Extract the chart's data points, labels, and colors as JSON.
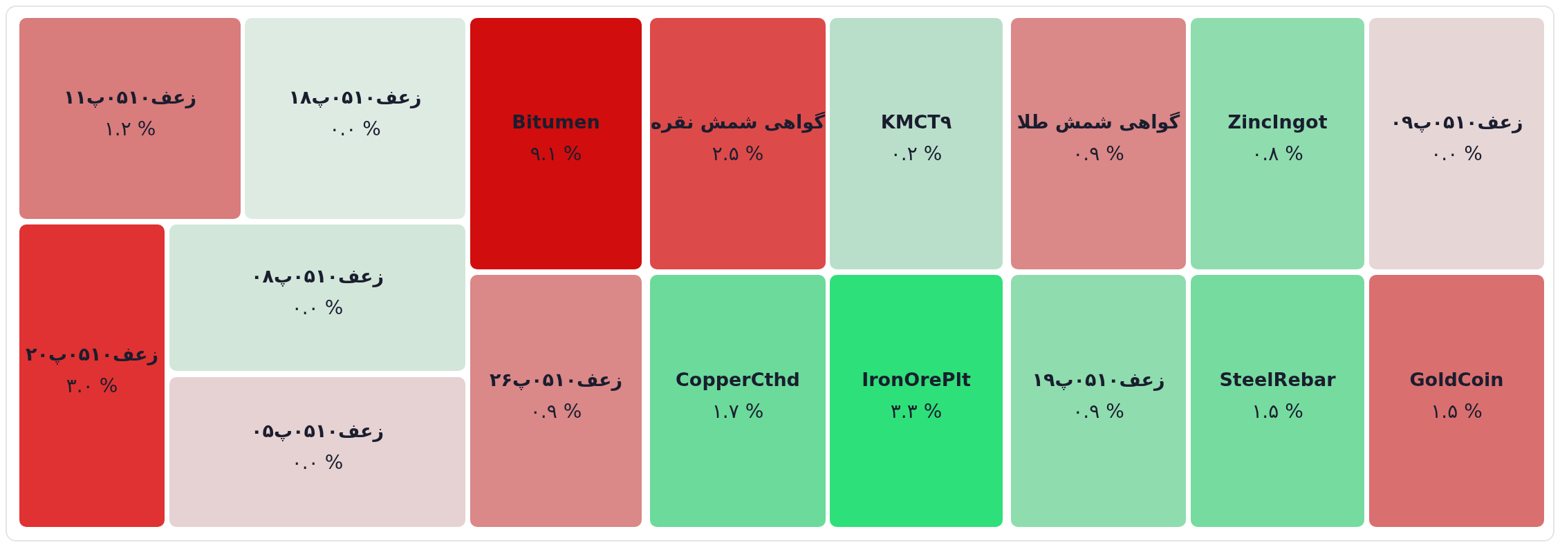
{
  "chart_data": {
    "type": "other",
    "categories": [
      "زعف۰۵۱۰پ۱۱",
      "زعف۰۵۱۰پ۱۸",
      "زعف۰۵۱۰پ۲۰",
      "زعف۰۵۱۰پ۰۸",
      "زعف۰۵۱۰پ۰۵",
      "Bitumen",
      "گواهی شمش نقره",
      "KMCT۹",
      "گواهی شمش طلا",
      "ZincIngot",
      "زعف۰۵۱۰پ۰۹",
      "زعف۰۵۱۰پ۲۶",
      "CopperCthd",
      "IronOrePlt",
      "زعف۰۵۱۰پ۱۹",
      "SteelRebar",
      "GoldCoin"
    ],
    "values": [
      1.2,
      0.0,
      3.0,
      0.0,
      0.0,
      9.1,
      2.5,
      0.2,
      0.9,
      0.8,
      0.0,
      0.9,
      1.7,
      3.3,
      0.9,
      1.5,
      1.5
    ],
    "value_labels": [
      "۱.۲ %",
      "۰.۰ %",
      "۳.۰ %",
      "۰.۰ %",
      "۰.۰ %",
      "۹.۱ %",
      "۲.۵ %",
      "۰.۲ %",
      "۰.۹ %",
      "۰.۸ %",
      "۰.۰ %",
      "۰.۹ %",
      "۱.۷ %",
      "۳.۳ %",
      "۰.۹ %",
      "۱.۵ %",
      "۱.۵ %"
    ],
    "colors": [
      "#d97c7c",
      "#deebe3",
      "#e03232",
      "#d2e6da",
      "#e6d2d2",
      "#d10d0d",
      "#dd4a4a",
      "#b9dfcb",
      "#da8888",
      "#8fdcaf",
      "#e6d6d6",
      "#da8888",
      "#6bda9b",
      "#2ee079",
      "#8fdcaf",
      "#75db9f",
      "#d96f6f"
    ]
  }
}
